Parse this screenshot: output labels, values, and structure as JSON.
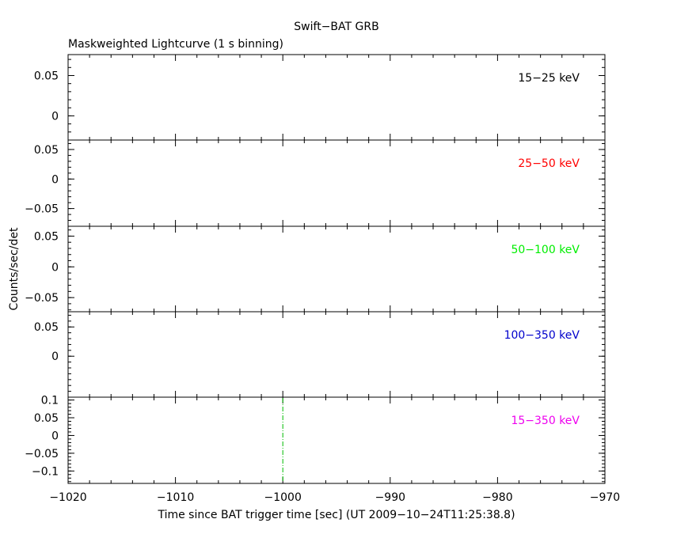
{
  "figure": {
    "title": "Swift−BAT GRB",
    "subtitle": "Maskweighted Lightcurve (1 s binning)",
    "xlabel": "Time since BAT trigger time [sec] (UT 2009−10−24T11:25:38.8)",
    "ylabel": "Counts/sec/det"
  },
  "chart_data": [
    {
      "type": "line",
      "band_label": "15−25 keV",
      "label_color": "#000000",
      "xlim": [
        -1020,
        -970
      ],
      "ylim": [
        -0.03,
        0.076
      ],
      "yticks": [
        {
          "v": 0.05,
          "label": "0.05"
        },
        {
          "v": 0,
          "label": "0"
        }
      ],
      "y_minor_step": 0.01,
      "x": [],
      "y": []
    },
    {
      "type": "line",
      "band_label": "25−50 keV",
      "label_color": "#ff0000",
      "xlim": [
        -1020,
        -970
      ],
      "ylim": [
        -0.08,
        0.066
      ],
      "yticks": [
        {
          "v": 0.05,
          "label": "0.05"
        },
        {
          "v": 0,
          "label": "0"
        },
        {
          "v": -0.05,
          "label": "−0.05"
        }
      ],
      "y_minor_step": 0.01,
      "x": [],
      "y": []
    },
    {
      "type": "line",
      "band_label": "50−100 keV",
      "label_color": "#00ee00",
      "xlim": [
        -1020,
        -970
      ],
      "ylim": [
        -0.073,
        0.066
      ],
      "yticks": [
        {
          "v": 0.05,
          "label": "0.05"
        },
        {
          "v": 0,
          "label": "0"
        },
        {
          "v": -0.05,
          "label": "−0.05"
        }
      ],
      "y_minor_step": 0.01,
      "x": [],
      "y": []
    },
    {
      "type": "line",
      "band_label": "100−350 keV",
      "label_color": "#0000cc",
      "xlim": [
        -1020,
        -970
      ],
      "ylim": [
        -0.07,
        0.076
      ],
      "yticks": [
        {
          "v": 0.05,
          "label": "0.05"
        },
        {
          "v": 0,
          "label": "0"
        }
      ],
      "y_minor_step": 0.01,
      "x": [],
      "y": []
    },
    {
      "type": "line",
      "band_label": "15−350 keV",
      "label_color": "#ee00ee",
      "xlim": [
        -1020,
        -970
      ],
      "ylim": [
        -0.135,
        0.108
      ],
      "yticks": [
        {
          "v": 0.1,
          "label": "0.1"
        },
        {
          "v": 0.05,
          "label": "0.05"
        },
        {
          "v": 0,
          "label": "0"
        },
        {
          "v": -0.05,
          "label": "−0.05"
        },
        {
          "v": -0.1,
          "label": "−0.1"
        }
      ],
      "y_minor_step": 0.01,
      "x": [],
      "y": [],
      "markers": [
        {
          "x": -1000,
          "color": "#00bb00",
          "style": "dash-dot"
        }
      ]
    }
  ],
  "x_axis": {
    "ticks": [
      {
        "v": -1020,
        "label": "−1020"
      },
      {
        "v": -1010,
        "label": "−1010"
      },
      {
        "v": -1000,
        "label": "−1000"
      },
      {
        "v": -990,
        "label": "−990"
      },
      {
        "v": -980,
        "label": "−980"
      },
      {
        "v": -970,
        "label": "−970"
      }
    ],
    "minor_step": 2
  }
}
